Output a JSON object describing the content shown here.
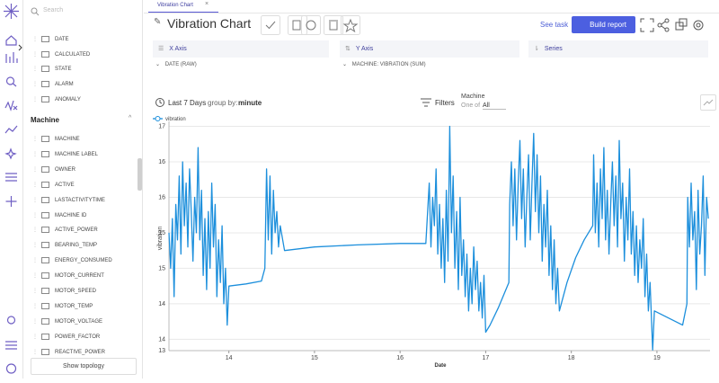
{
  "tab": "Vibration Chart",
  "header": {
    "title": "Vibration Chart",
    "see_task": "See task",
    "build_report": "Build report"
  },
  "sidebar": {
    "search_placeholder": "Search",
    "top_items": [
      "DATE",
      "CALCULATED",
      "STATE",
      "ALARM",
      "ANOMALY"
    ],
    "section": "Machine",
    "section_items": [
      "MACHINE",
      "MACHINE LABEL",
      "OWNER",
      "ACTIVE",
      "LASTACTIVITYTIME",
      "MACHINE ID",
      "ACTIVE_POWER",
      "BEARING_TEMP",
      "ENERGY_CONSUMED",
      "MOTOR_CURRENT",
      "MOTOR_SPEED",
      "MOTOR_TEMP",
      "MOTOR_VOLTAGE",
      "POWER_FACTOR",
      "REACTIVE_POWER"
    ],
    "show_topology": "Show topology"
  },
  "panels": {
    "x_axis": "X Axis",
    "y_axis": "Y Axis",
    "series": "Series",
    "x_field": "DATE (RAW)",
    "y_field": "MACHINE: VIBRATION (SUM)"
  },
  "toolbar": {
    "range": "Last 7 Days",
    "group_by": "group by:",
    "group_value": "minute",
    "filters": "Filters",
    "filter_field": "Machine",
    "filter_op": "One of",
    "filter_value": "All"
  },
  "chart_data": {
    "type": "line",
    "x_label": "Date",
    "y_label": "vibration",
    "xlim": [
      13.3,
      19.62
    ],
    "xticks": [
      14,
      15,
      16,
      17,
      18,
      19
    ],
    "ylim": [
      13.44,
      16.67
    ],
    "yticks": [
      {
        "value": 13.44,
        "label": "13"
      },
      {
        "value": 13.6,
        "label": "14"
      },
      {
        "value": 14.1,
        "label": "14"
      },
      {
        "value": 14.6,
        "label": "15"
      },
      {
        "value": 15.1,
        "label": "15"
      },
      {
        "value": 15.6,
        "label": "16"
      },
      {
        "value": 16.1,
        "label": "16"
      },
      {
        "value": 16.6,
        "label": "17"
      }
    ],
    "grid": true,
    "x": [
      13.3,
      13.32,
      13.34,
      13.36,
      13.38,
      13.4,
      13.42,
      13.44,
      13.46,
      13.48,
      13.5,
      13.52,
      13.54,
      13.56,
      13.58,
      13.6,
      13.62,
      13.64,
      13.66,
      13.68,
      13.7,
      13.72,
      13.74,
      13.76,
      13.78,
      13.8,
      13.82,
      13.84,
      13.86,
      13.88,
      13.9,
      13.92,
      13.94,
      13.96,
      13.98,
      14.0,
      14.2,
      14.38,
      14.42,
      14.44,
      14.46,
      14.48,
      14.5,
      14.52,
      14.54,
      14.56,
      14.58,
      14.6,
      14.65,
      15.0,
      15.5,
      16.0,
      16.3,
      16.34,
      16.36,
      16.38,
      16.4,
      16.42,
      16.44,
      16.46,
      16.48,
      16.5,
      16.52,
      16.54,
      16.56,
      16.58,
      16.6,
      16.62,
      16.64,
      16.66,
      16.68,
      16.7,
      16.72,
      16.74,
      16.76,
      16.78,
      16.8,
      16.82,
      16.84,
      16.86,
      16.88,
      16.9,
      16.92,
      16.94,
      16.96,
      16.98,
      17.0,
      17.05,
      17.15,
      17.27,
      17.28,
      17.3,
      17.32,
      17.34,
      17.36,
      17.38,
      17.4,
      17.42,
      17.44,
      17.46,
      17.48,
      17.5,
      17.52,
      17.54,
      17.56,
      17.58,
      17.6,
      17.62,
      17.64,
      17.66,
      17.68,
      17.7,
      17.72,
      17.74,
      17.76,
      17.78,
      17.8,
      17.82,
      17.84,
      17.86,
      17.95,
      18.05,
      18.15,
      18.25,
      18.26,
      18.28,
      18.3,
      18.32,
      18.34,
      18.36,
      18.38,
      18.4,
      18.42,
      18.44,
      18.46,
      18.48,
      18.5,
      18.52,
      18.54,
      18.56,
      18.58,
      18.6,
      18.62,
      18.64,
      18.66,
      18.68,
      18.7,
      18.72,
      18.74,
      18.76,
      18.78,
      18.8,
      18.82,
      18.84,
      18.86,
      18.88,
      18.9,
      18.92,
      18.95,
      18.97,
      19.3,
      19.35,
      19.36,
      19.38,
      19.4,
      19.42,
      19.44,
      19.46,
      19.48,
      19.5,
      19.52,
      19.54,
      19.56,
      19.58,
      19.6
    ],
    "series": [
      {
        "name": "vibration",
        "color": "#1c8fdc",
        "values": [
          15.1,
          14.6,
          15.3,
          14.2,
          15.5,
          15.0,
          15.9,
          14.8,
          16.1,
          15.2,
          15.8,
          14.9,
          16.0,
          15.4,
          14.7,
          15.6,
          15.1,
          16.3,
          15.0,
          15.7,
          14.5,
          15.3,
          14.3,
          15.4,
          14.6,
          15.8,
          14.9,
          15.5,
          14.2,
          15.0,
          14.4,
          15.2,
          14.1,
          14.6,
          13.8,
          14.35,
          14.38,
          14.42,
          14.6,
          16.0,
          15.0,
          15.9,
          14.8,
          15.7,
          15.1,
          15.4,
          14.9,
          15.2,
          14.85,
          14.9,
          14.93,
          14.95,
          14.95,
          15.8,
          14.9,
          15.6,
          15.2,
          16.0,
          14.8,
          15.5,
          14.6,
          15.3,
          14.4,
          15.7,
          14.7,
          16.6,
          15.1,
          15.9,
          14.6,
          15.4,
          14.3,
          15.6,
          14.5,
          15.0,
          14.2,
          14.8,
          14.0,
          14.6,
          14.1,
          14.9,
          14.3,
          14.7,
          14.0,
          14.4,
          13.9,
          14.5,
          13.7,
          13.8,
          14.05,
          14.4,
          15.5,
          16.1,
          15.2,
          16.0,
          15.0,
          15.8,
          16.4,
          15.3,
          16.0,
          14.9,
          15.6,
          16.2,
          15.0,
          15.8,
          16.5,
          15.4,
          16.2,
          15.1,
          15.9,
          14.7,
          15.5,
          14.9,
          15.7,
          14.5,
          15.2,
          14.3,
          15.0,
          14.1,
          14.6,
          14.0,
          14.4,
          14.75,
          15.0,
          15.2,
          16.2,
          15.1,
          15.8,
          14.9,
          16.0,
          15.3,
          16.3,
          15.0,
          15.7,
          14.8,
          15.5,
          16.1,
          15.2,
          15.9,
          14.9,
          16.4,
          15.3,
          15.8,
          14.7,
          15.6,
          15.0,
          16.0,
          14.8,
          15.4,
          14.5,
          15.2,
          14.4,
          15.0,
          14.6,
          15.3,
          14.2,
          14.8,
          14.0,
          14.4,
          13.45,
          14.0,
          13.8,
          14.1,
          15.6,
          14.9,
          15.8,
          15.0,
          15.4,
          14.3,
          15.7,
          14.8,
          15.2,
          15.9,
          14.5,
          15.6,
          15.3
        ]
      }
    ]
  }
}
